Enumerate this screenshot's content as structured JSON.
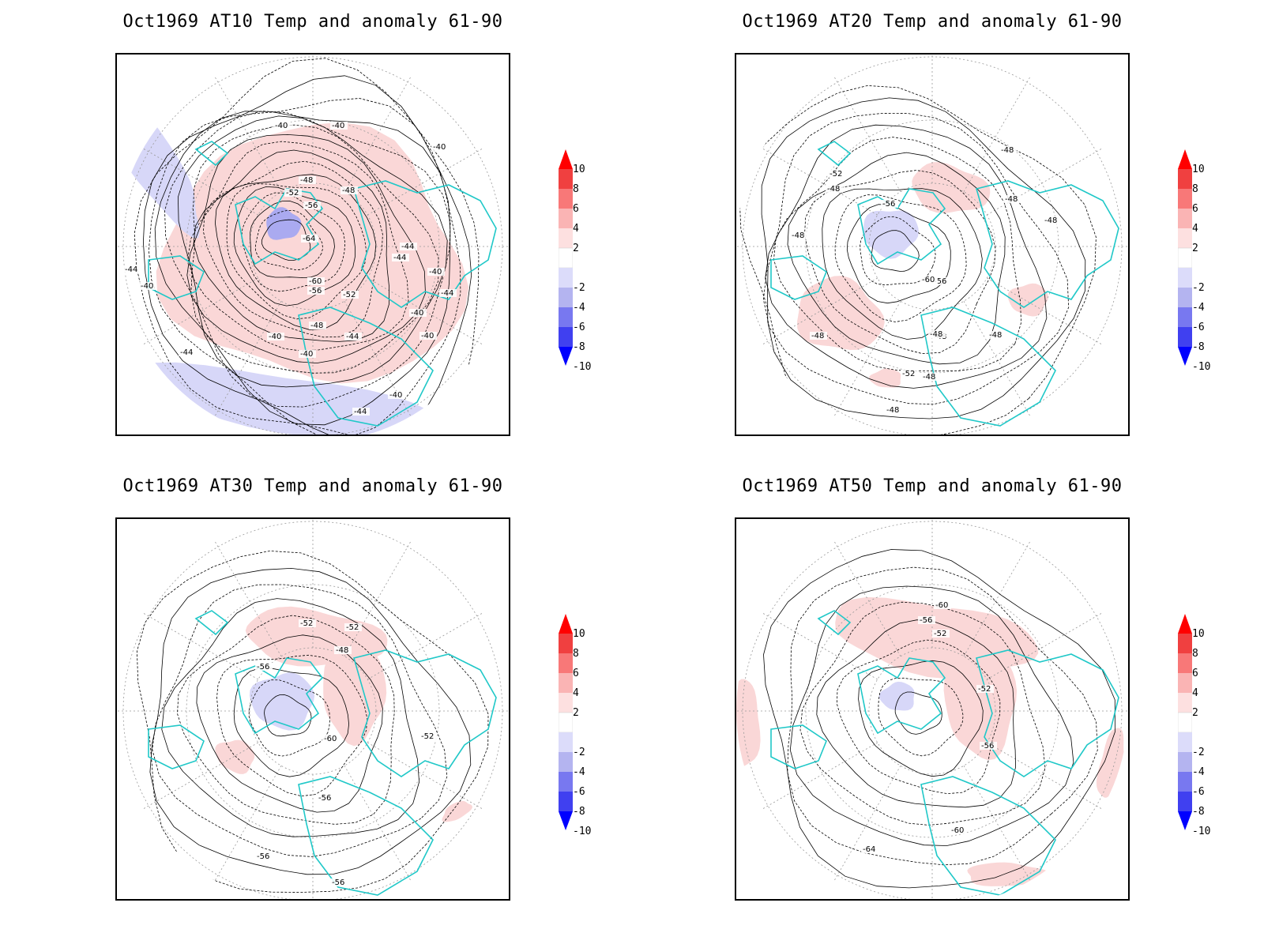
{
  "panels": [
    {
      "title": "Oct1969 AT10 Temp and anomaly 61-90",
      "contour_labels": [
        "-40",
        "-40",
        "-40",
        "-44",
        "-44",
        "-44",
        "-48",
        "-48",
        "-48",
        "-52",
        "-52",
        "-56",
        "-56",
        "-60",
        "-64",
        "-40",
        "-40",
        "-40",
        "-40",
        "-40",
        "-44",
        "-44",
        "-40",
        "-40",
        "-44",
        "-44"
      ]
    },
    {
      "title": "Oct1969 AT20 Temp and anomaly 61-90",
      "contour_labels": [
        "-48",
        "-48",
        "-48",
        "-48",
        "-48",
        "-52",
        "-56",
        "-56",
        "-60",
        "-48",
        "-48",
        "-48",
        "-48",
        "-52",
        "-48",
        "-48"
      ]
    },
    {
      "title": "Oct1969 AT30 Temp and anomaly 61-90",
      "contour_labels": [
        "-52",
        "-52",
        "-48",
        "-56",
        "-60",
        "-52",
        "-56",
        "-56",
        "-56"
      ]
    },
    {
      "title": "Oct1969 AT50 Temp and anomaly 61-90",
      "contour_labels": [
        "-60",
        "-56",
        "-52",
        "-52",
        "-56",
        "-60",
        "-64"
      ]
    }
  ],
  "colorbar": {
    "labels": [
      "10",
      "8",
      "6",
      "4",
      "2",
      "-2",
      "-4",
      "-6",
      "-8",
      "-10"
    ],
    "colors": [
      "#ff0000",
      "#f04040",
      "#f87878",
      "#fab4b4",
      "#fde0e0",
      "#ffffff",
      "#dcdcfa",
      "#b4b4f0",
      "#7878f0",
      "#4040f0",
      "#0000ff"
    ]
  },
  "colors": {
    "coastline": "#20c8c8",
    "positive_anomaly": "#fad7d7",
    "negative_anomaly": "#d7d7f8",
    "strong_negative_anomaly": "#aaaaf0",
    "contour": "#000000",
    "grid": "#999999"
  }
}
